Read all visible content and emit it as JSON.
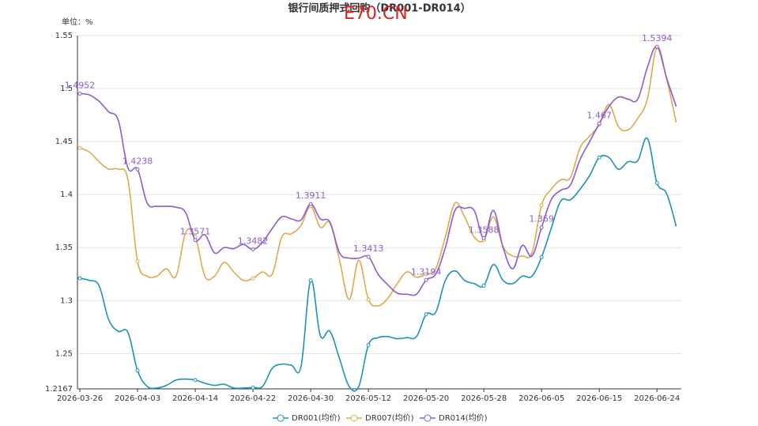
{
  "chart_data": {
    "type": "line",
    "title": "银行间质押式回购（DR001-DR014）",
    "watermark": "E70.CN",
    "unit_label": "单位：%",
    "categories": [
      "2026-03-26",
      null,
      null,
      null,
      null,
      null,
      "2026-04-03",
      null,
      null,
      null,
      null,
      null,
      "2026-04-14",
      null,
      null,
      null,
      null,
      null,
      "2026-04-22",
      null,
      null,
      null,
      null,
      null,
      "2026-04-30",
      null,
      null,
      null,
      null,
      null,
      "2026-05-12",
      null,
      null,
      null,
      null,
      null,
      "2026-05-20",
      null,
      null,
      null,
      null,
      null,
      "2026-05-28",
      null,
      null,
      null,
      null,
      null,
      "2026-06-05",
      null,
      null,
      null,
      null,
      null,
      "2026-06-15",
      null,
      null,
      null,
      null,
      null,
      "2026-06-24",
      null,
      null
    ],
    "series": [
      {
        "name": "DR001(均价)",
        "color": "#1c93b4",
        "values": [
          1.321,
          1.319,
          1.314,
          1.282,
          1.271,
          1.27,
          1.234,
          1.219,
          1.2175,
          1.22,
          1.225,
          1.226,
          1.225,
          1.222,
          1.22,
          1.221,
          1.2175,
          1.2175,
          1.218,
          1.219,
          1.236,
          1.24,
          1.239,
          1.238,
          1.319,
          1.267,
          1.271,
          1.245,
          1.219,
          1.219,
          1.258,
          1.265,
          1.266,
          1.264,
          1.265,
          1.266,
          1.287,
          1.289,
          1.319,
          1.328,
          1.319,
          1.316,
          1.314,
          1.334,
          1.319,
          1.316,
          1.323,
          1.323,
          1.341,
          1.368,
          1.394,
          1.395,
          1.405,
          1.418,
          1.435,
          1.435,
          1.424,
          1.431,
          1.432,
          1.453,
          1.411,
          1.401,
          1.37
        ]
      },
      {
        "name": "DR007(均价)",
        "color": "#dcaa4b",
        "values": [
          1.444,
          1.44,
          1.431,
          1.424,
          1.424,
          1.414,
          1.337,
          1.323,
          1.323,
          1.33,
          1.323,
          1.364,
          1.36,
          1.323,
          1.323,
          1.336,
          1.327,
          1.319,
          1.321,
          1.327,
          1.325,
          1.36,
          1.363,
          1.371,
          1.389,
          1.369,
          1.373,
          1.338,
          1.301,
          1.338,
          1.301,
          1.295,
          1.302,
          1.316,
          1.327,
          1.322,
          1.325,
          1.33,
          1.36,
          1.392,
          1.379,
          1.36,
          1.357,
          1.379,
          1.351,
          1.342,
          1.342,
          1.345,
          1.39,
          1.405,
          1.414,
          1.416,
          1.444,
          1.455,
          1.466,
          1.485,
          1.464,
          1.461,
          1.472,
          1.49,
          1.539,
          1.509,
          1.468
        ]
      },
      {
        "name": "DR014(均价)",
        "color": "#8b5bd0",
        "values": [
          1.4952,
          1.494,
          1.488,
          1.478,
          1.47,
          1.425,
          1.4238,
          1.392,
          1.389,
          1.389,
          1.388,
          1.383,
          1.3571,
          1.362,
          1.345,
          1.35,
          1.349,
          1.353,
          1.3482,
          1.355,
          1.368,
          1.379,
          1.377,
          1.376,
          1.3911,
          1.377,
          1.374,
          1.345,
          1.34,
          1.34,
          1.3413,
          1.325,
          1.315,
          1.307,
          1.306,
          1.306,
          1.3194,
          1.325,
          1.35,
          1.385,
          1.387,
          1.385,
          1.3588,
          1.385,
          1.35,
          1.33,
          1.352,
          1.342,
          1.369,
          1.395,
          1.404,
          1.409,
          1.433,
          1.45,
          1.467,
          1.483,
          1.492,
          1.49,
          1.49,
          1.52,
          1.5394,
          1.51,
          1.483
        ]
      }
    ],
    "ylim": [
      1.2167,
      1.55
    ],
    "yticks": [
      1.2167,
      1.25,
      1.3,
      1.35,
      1.4,
      1.45,
      1.5,
      1.55
    ],
    "grid": true
  }
}
